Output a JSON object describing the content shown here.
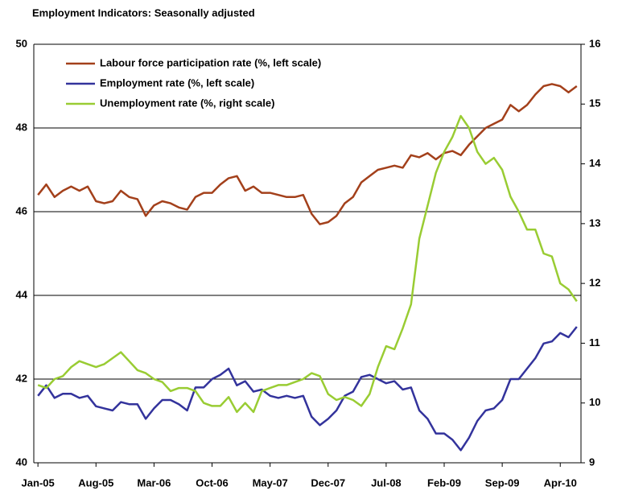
{
  "chart_data": {
    "type": "line",
    "title": "Employment Indicators: Seasonally adjusted",
    "categories": [
      "Jan-05",
      null,
      null,
      null,
      null,
      null,
      null,
      "Aug-05",
      null,
      null,
      null,
      null,
      null,
      null,
      "Mar-06",
      null,
      null,
      null,
      null,
      null,
      null,
      "Oct-06",
      null,
      null,
      null,
      null,
      null,
      null,
      "May-07",
      null,
      null,
      null,
      null,
      null,
      null,
      "Dec-07",
      null,
      null,
      null,
      null,
      null,
      null,
      "Jul-08",
      null,
      null,
      null,
      null,
      null,
      null,
      "Feb-09",
      null,
      null,
      null,
      null,
      null,
      null,
      "Sep-09",
      null,
      null,
      null,
      null,
      null,
      null,
      "Apr-10",
      null,
      null
    ],
    "series": [
      {
        "name": "Labour force participation rate (%, left scale)",
        "color": "#a3401b",
        "values": [
          46.4,
          46.65,
          46.35,
          46.5,
          46.6,
          46.5,
          46.6,
          46.25,
          46.2,
          46.25,
          46.5,
          46.35,
          46.3,
          45.9,
          46.15,
          46.25,
          46.2,
          46.1,
          46.05,
          46.35,
          46.45,
          46.45,
          46.65,
          46.8,
          46.85,
          46.5,
          46.6,
          46.45,
          46.45,
          46.4,
          46.35,
          46.35,
          46.4,
          45.95,
          45.7,
          45.75,
          45.9,
          46.2,
          46.35,
          46.7,
          46.85,
          47.0,
          47.05,
          47.1,
          47.05,
          47.35,
          47.3,
          47.4,
          47.25,
          47.4,
          47.45,
          47.35,
          47.6,
          47.8,
          48.0,
          48.1,
          48.2,
          48.55,
          48.4,
          48.55,
          48.8,
          49.0,
          49.05,
          49.0,
          48.85,
          49.0
        ]
      },
      {
        "name": "Employment rate (%, left scale)",
        "color": "#33339c",
        "values": [
          41.6,
          41.85,
          41.55,
          41.65,
          41.65,
          41.55,
          41.6,
          41.35,
          41.3,
          41.25,
          41.45,
          41.4,
          41.4,
          41.05,
          41.3,
          41.5,
          41.5,
          41.4,
          41.25,
          41.8,
          41.8,
          42.0,
          42.1,
          42.25,
          41.85,
          41.95,
          41.7,
          41.75,
          41.6,
          41.55,
          41.6,
          41.55,
          41.6,
          41.1,
          40.9,
          41.05,
          41.25,
          41.6,
          41.7,
          42.05,
          42.1,
          42.0,
          41.9,
          41.95,
          41.75,
          41.8,
          41.25,
          41.05,
          40.7,
          40.7,
          40.55,
          40.3,
          40.6,
          41.0,
          41.25,
          41.3,
          41.5,
          42.0,
          42.0,
          42.25,
          42.5,
          42.85,
          42.9,
          43.1,
          43.0,
          43.25
        ]
      },
      {
        "name": "Unemployment rate (%, right scale)",
        "color": "#99cc33",
        "axis": "y2",
        "values": [
          10.3,
          10.25,
          10.4,
          10.45,
          10.6,
          10.7,
          10.65,
          10.6,
          10.65,
          10.75,
          10.85,
          10.7,
          10.55,
          10.5,
          10.4,
          10.35,
          10.2,
          10.25,
          10.25,
          10.2,
          10.0,
          9.95,
          9.95,
          10.1,
          9.85,
          10.0,
          9.85,
          10.2,
          10.25,
          10.3,
          10.3,
          10.35,
          10.4,
          10.5,
          10.45,
          10.15,
          10.05,
          10.1,
          10.05,
          9.95,
          10.15,
          10.6,
          10.95,
          10.9,
          11.25,
          11.65,
          12.75,
          13.3,
          13.85,
          14.2,
          14.45,
          14.8,
          14.6,
          14.2,
          14.0,
          14.1,
          13.9,
          13.45,
          13.2,
          12.9,
          12.9,
          12.5,
          12.45,
          12.0,
          11.9,
          11.7
        ]
      }
    ],
    "ylim": [
      40,
      50
    ],
    "yticks": [
      40,
      42,
      44,
      46,
      48,
      50
    ],
    "y2lim": [
      9,
      16
    ],
    "y2ticks": [
      9,
      10,
      11,
      12,
      13,
      14,
      15,
      16
    ],
    "grid": true,
    "legend": "upper left"
  }
}
